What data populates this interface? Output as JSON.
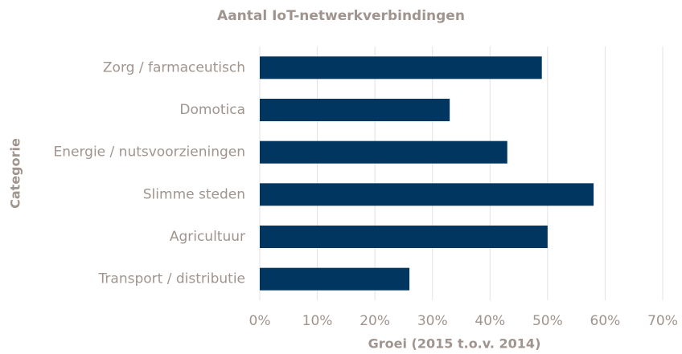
{
  "chart_data": {
    "type": "bar",
    "orientation": "horizontal",
    "title": "Aantal IoT-netwerkverbindingen",
    "xlabel": "Groei (2015 t.o.v. 2014)",
    "ylabel": "Categorie",
    "categories": [
      "Zorg / farmaceutisch",
      "Domotica",
      "Energie / nutsvoorzieningen",
      "Slimme steden",
      "Agricultuur",
      "Transport / distributie"
    ],
    "values": [
      49,
      33,
      43,
      58,
      50,
      26
    ],
    "color": "#00365f",
    "xlim": [
      0,
      70
    ],
    "xticks": [
      {
        "value": 0,
        "label": "0%"
      },
      {
        "value": 10,
        "label": "10%"
      },
      {
        "value": 20,
        "label": "20%"
      },
      {
        "value": 30,
        "label": "30%"
      },
      {
        "value": 40,
        "label": "40%"
      },
      {
        "value": 50,
        "label": "50%"
      },
      {
        "value": 60,
        "label": "60%"
      },
      {
        "value": 70,
        "label": "70%"
      }
    ],
    "grid": true
  }
}
